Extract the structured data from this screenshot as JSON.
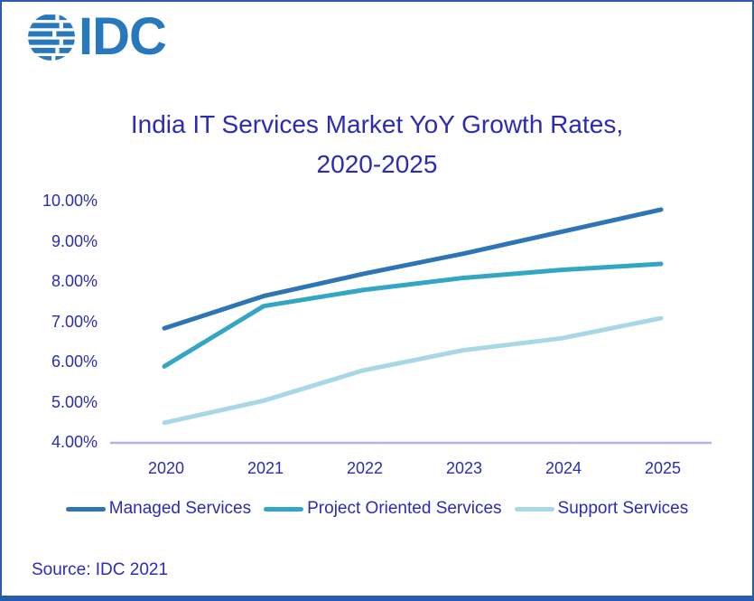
{
  "logo": {
    "text": "IDC",
    "color": "#2878BE",
    "icon": "idc-globe-icon"
  },
  "title": {
    "line1": "India IT Services Market YoY Growth Rates,",
    "line2": "2020-2025",
    "color": "#2B2BB8"
  },
  "chart_data": {
    "type": "line",
    "x": [
      2020,
      2021,
      2022,
      2023,
      2024,
      2025
    ],
    "x_labels": [
      "2020",
      "2021",
      "2022",
      "2023",
      "2024",
      "2025"
    ],
    "ylim": [
      4,
      10
    ],
    "ylabel": "",
    "xlabel": "",
    "grid": false,
    "legend_position": "bottom",
    "axis_line_color": "#B4B4E8",
    "tick_label_color": "#2B2BB8",
    "yticks": [
      {
        "value": 10,
        "label": "10.00%"
      },
      {
        "value": 9,
        "label": "9.00%"
      },
      {
        "value": 8,
        "label": "8.00%"
      },
      {
        "value": 7,
        "label": "7.00%"
      },
      {
        "value": 6,
        "label": "6.00%"
      },
      {
        "value": 5,
        "label": "5.00%"
      },
      {
        "value": 4,
        "label": "4.00%"
      }
    ],
    "series": [
      {
        "name": "Managed Services",
        "color": "#2E75B6",
        "values": [
          6.85,
          7.65,
          8.2,
          8.7,
          9.25,
          9.8
        ]
      },
      {
        "name": "Project Oriented Services",
        "color": "#33A6C4",
        "values": [
          5.9,
          7.4,
          7.8,
          8.1,
          8.3,
          8.45
        ]
      },
      {
        "name": "Support Services",
        "color": "#A8D8E8",
        "values": [
          4.5,
          5.05,
          5.8,
          6.3,
          6.6,
          7.1
        ]
      }
    ]
  },
  "source": {
    "text": "Source: IDC 2021"
  }
}
